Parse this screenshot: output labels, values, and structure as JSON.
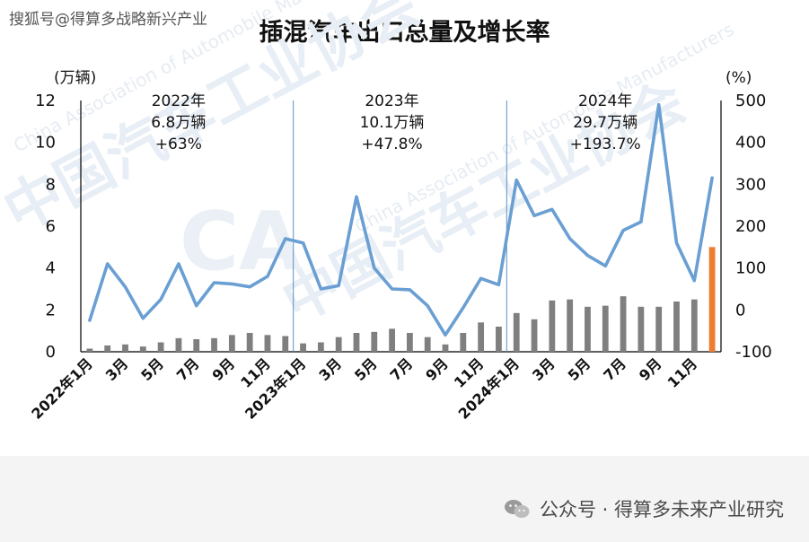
{
  "header": {
    "source_mark": "搜狐号@得算多战略新兴产业",
    "title": "插混汽车出口总量及增长率"
  },
  "footer": {
    "credit": "公众号 · 得算多未来产业研究"
  },
  "watermark": {
    "cn": "中国汽车工业协会",
    "en": "China Association of Automobile Manufacturers",
    "logo": "CA"
  },
  "colors": {
    "bars": "#7f7f7f",
    "bar_highlight": "#ed7d31",
    "line": "#6a9fd3",
    "separator": "#5b8fc9",
    "footer": "#f4f4f4"
  },
  "chart_data": {
    "type": "bar+line",
    "title": "插混汽车出口总量及增长率",
    "y_left": {
      "unit": "(万辆)",
      "ylim": [
        0,
        12
      ],
      "ticks": [
        "0",
        "2",
        "4",
        "6",
        "8",
        "10",
        "12"
      ]
    },
    "y_right": {
      "unit": "(%)",
      "ylim": [
        -100,
        500
      ],
      "ticks": [
        "-100",
        "0",
        "100",
        "200",
        "300",
        "400",
        "500"
      ]
    },
    "x_labels": [
      "2022年1月",
      "",
      "3月",
      "",
      "5月",
      "",
      "7月",
      "",
      "9月",
      "",
      "11月",
      "",
      "2023年1月",
      "",
      "3月",
      "",
      "5月",
      "",
      "7月",
      "",
      "9月",
      "",
      "11月",
      "",
      "2024年1月",
      "",
      "3月",
      "",
      "5月",
      "",
      "7月",
      "",
      "9月",
      "",
      "11月",
      ""
    ],
    "series": [
      {
        "type": "bar",
        "axis": "left",
        "values": [
          0.15,
          0.3,
          0.35,
          0.25,
          0.45,
          0.65,
          0.6,
          0.65,
          0.8,
          0.9,
          0.8,
          0.75,
          0.4,
          0.45,
          0.7,
          0.9,
          0.95,
          1.1,
          0.9,
          0.7,
          0.35,
          0.9,
          1.4,
          1.2,
          1.85,
          1.55,
          2.45,
          2.5,
          2.15,
          2.2,
          2.65,
          2.15,
          2.15,
          2.4,
          2.5,
          5.0
        ]
      },
      {
        "type": "line",
        "axis": "right",
        "values": [
          -25,
          110,
          55,
          -20,
          25,
          110,
          10,
          65,
          62,
          55,
          80,
          170,
          160,
          50,
          58,
          270,
          100,
          50,
          48,
          10,
          -60,
          5,
          75,
          60,
          310,
          225,
          240,
          170,
          130,
          105,
          190,
          210,
          490,
          160,
          70,
          315
        ]
      }
    ],
    "annotations": [
      {
        "year": "2022年",
        "total": "6.8万辆",
        "growth": "+63%"
      },
      {
        "year": "2023年",
        "total": "10.1万辆",
        "growth": "+47.8%"
      },
      {
        "year": "2024年",
        "total": "29.7万辆",
        "growth": "+193.7%"
      }
    ]
  }
}
